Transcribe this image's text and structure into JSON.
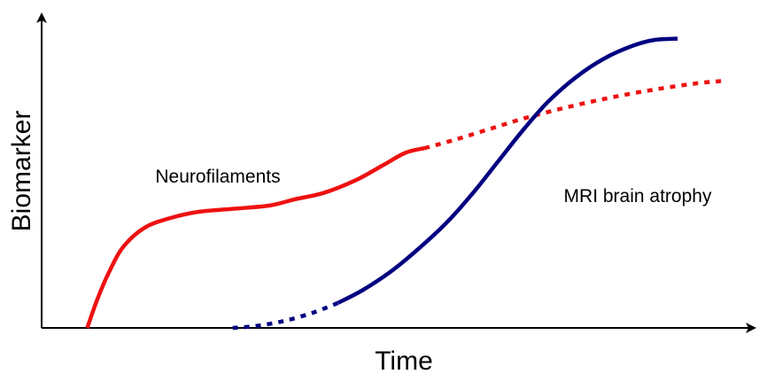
{
  "chart_data": {
    "type": "line",
    "xlabel": "Time",
    "ylabel": "Biomarker",
    "xlim": [
      0,
      100
    ],
    "ylim": [
      0,
      100
    ],
    "ticks": "none",
    "grid": false,
    "legend": "none",
    "series": [
      {
        "name": "Neurofilaments",
        "color": "#ee1111",
        "solid": [
          [
            6.4,
            0
          ],
          [
            7.8,
            9
          ],
          [
            9.5,
            18
          ],
          [
            11.5,
            26
          ],
          [
            14.5,
            32
          ],
          [
            18,
            35
          ],
          [
            22,
            37
          ],
          [
            27,
            38
          ],
          [
            32,
            39
          ],
          [
            35.5,
            41
          ],
          [
            39.5,
            43
          ],
          [
            44,
            47
          ],
          [
            48,
            52
          ],
          [
            51,
            55.8
          ],
          [
            53.7,
            57.3
          ]
        ],
        "dashed": [
          [
            53.7,
            57.3
          ],
          [
            58,
            60
          ],
          [
            63,
            63.5
          ],
          [
            68,
            67
          ],
          [
            74,
            70.5
          ],
          [
            80,
            73.5
          ],
          [
            86,
            76
          ],
          [
            92,
            78
          ],
          [
            95.5,
            78.7
          ]
        ]
      },
      {
        "name": "MRI brain atrophy",
        "color": "#000080",
        "dashed": [
          [
            26.8,
            0
          ],
          [
            30,
            0.6
          ],
          [
            34,
            2.2
          ],
          [
            38,
            4.8
          ],
          [
            41.6,
            8
          ]
        ],
        "solid": [
          [
            41.6,
            8
          ],
          [
            45,
            12
          ],
          [
            49,
            18
          ],
          [
            53,
            25.5
          ],
          [
            57,
            34
          ],
          [
            60.5,
            43
          ],
          [
            64,
            53
          ],
          [
            67.5,
            63
          ],
          [
            71,
            72
          ],
          [
            75,
            80
          ],
          [
            79,
            86
          ],
          [
            83,
            90
          ],
          [
            86,
            91.8
          ],
          [
            89.2,
            92.2
          ]
        ]
      }
    ]
  }
}
